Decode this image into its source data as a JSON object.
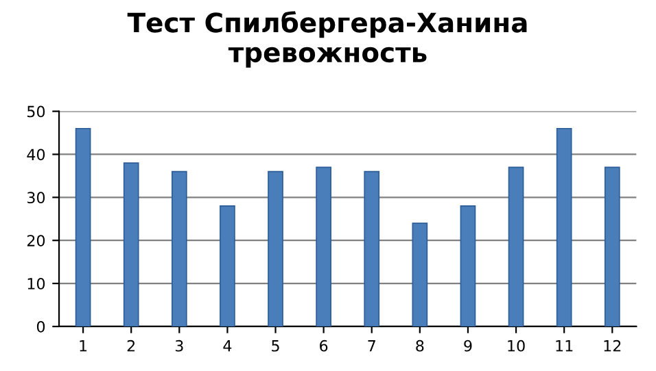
{
  "chart_data": {
    "type": "bar",
    "title": "Тест Спилбергера-Ханина\nтревожность",
    "categories": [
      "1",
      "2",
      "3",
      "4",
      "5",
      "6",
      "7",
      "8",
      "9",
      "10",
      "11",
      "12"
    ],
    "values": [
      46,
      38,
      36,
      28,
      36,
      37,
      36,
      24,
      28,
      37,
      46,
      37
    ],
    "color": "#4a7ebb",
    "ylim": [
      0,
      50
    ],
    "yticks": [
      0,
      10,
      20,
      30,
      40,
      50
    ],
    "grid": "y",
    "legend": false
  }
}
